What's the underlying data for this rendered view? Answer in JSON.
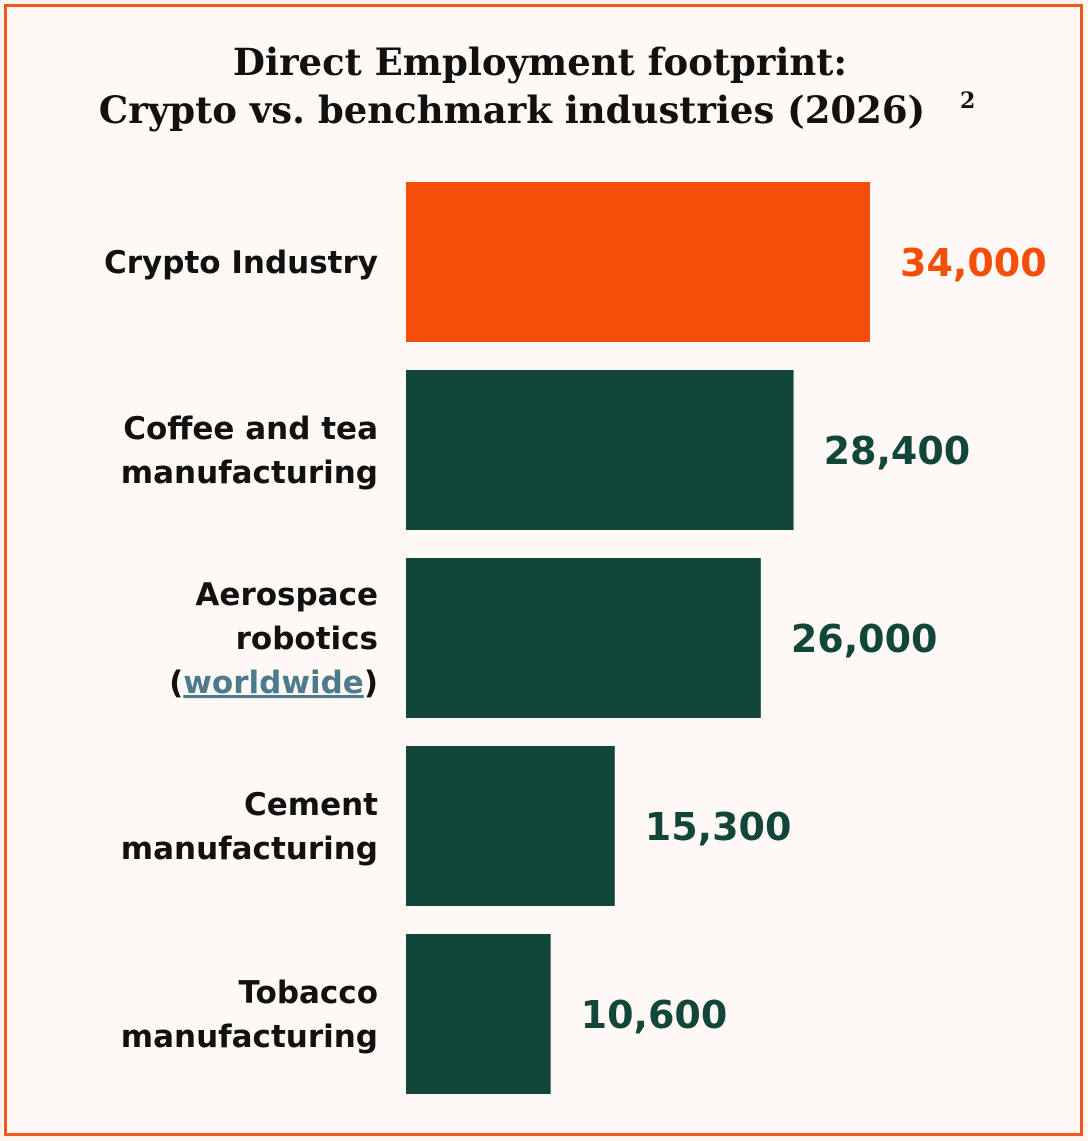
{
  "chart_data": {
    "type": "bar",
    "orientation": "horizontal",
    "title_line1": "Direct Employment footprint:",
    "title_line2": "Crypto vs. benchmark industries (2026)",
    "title_superscript": "2",
    "categories": [
      [
        "Crypto Industry"
      ],
      [
        "Coffee and tea",
        "manufacturing"
      ],
      [
        "Aerospace",
        "robotics",
        "(worldwide)"
      ],
      [
        "Cement",
        "manufacturing"
      ],
      [
        "Tobacco",
        "manufacturing"
      ]
    ],
    "values": [
      34000,
      28400,
      26000,
      15300,
      10600
    ],
    "value_labels": [
      "34,000",
      "28,400",
      "26,000",
      "15,300",
      "10,600"
    ],
    "highlight_index": 0,
    "colors": {
      "highlight": "#f54e0a",
      "bar": "#13463b",
      "frame": "#f0561f",
      "link": "#4d7a8c"
    },
    "grid": false,
    "legend": "none"
  }
}
